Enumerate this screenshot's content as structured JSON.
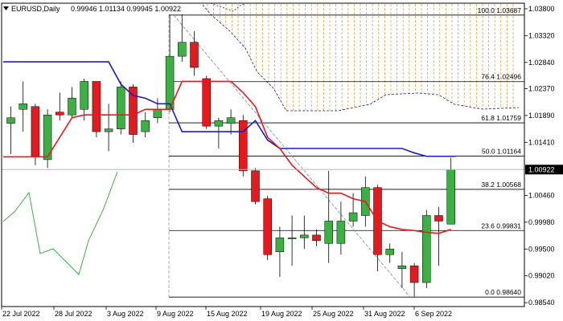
{
  "header": {
    "symbol": "EURUSD,Daily",
    "ohlc": "0.99946 1.01134 0.99945 1.00922"
  },
  "price_axis": {
    "labels": [
      "1.03800",
      "1.03320",
      "1.02840",
      "1.02370",
      "1.01890",
      "1.01410",
      "1.00922",
      "1.00460",
      "0.99980",
      "0.99500",
      "0.99020",
      "0.98540"
    ],
    "current_price": 1.00922,
    "current_label": "1.00922"
  },
  "time_axis": {
    "labels": [
      "22 Jul 2022",
      "28 Jul 2022",
      "3 Aug 2022",
      "9 Aug 2022",
      "15 Aug 2022",
      "19 Aug 2022",
      "25 Aug 2022",
      "31 Aug 2022",
      "6 Sep 2022"
    ]
  },
  "fibonacci": [
    {
      "label": "100.0 1.03687",
      "price": 1.03687
    },
    {
      "label": "76.4 1.02496",
      "price": 1.02496
    },
    {
      "label": "61.8 1.01759",
      "price": 1.01759
    },
    {
      "label": "50.0 1.01164",
      "price": 1.01164
    },
    {
      "label": "38.2 1.00568",
      "price": 1.00568
    },
    {
      "label": "23.6 0.99831",
      "price": 0.99831
    },
    {
      "label": "0.0 0.98640",
      "price": 0.9864
    }
  ],
  "colors": {
    "bull": "#3cb043",
    "bear": "#e8191c",
    "wick": "#000000",
    "blue_line": "#1a1acd",
    "red_line": "#e8191c",
    "green_line": "#3cb043",
    "cloud": "#e8a13c",
    "cloud_border": "#1a1a7a"
  },
  "chart_data": {
    "type": "candlestick",
    "symbol": "EURUSD",
    "timeframe": "Daily",
    "ylim": [
      0.9845,
      1.0392
    ],
    "candles": [
      {
        "o": 1.0175,
        "h": 1.0205,
        "l": 1.012,
        "c": 1.0185
      },
      {
        "o": 1.02,
        "h": 1.025,
        "l": 1.016,
        "c": 1.021
      },
      {
        "o": 1.0205,
        "h": 1.021,
        "l": 1.01,
        "c": 1.0115
      },
      {
        "o": 1.011,
        "h": 1.02,
        "l": 1.0095,
        "c": 1.019
      },
      {
        "o": 1.0195,
        "h": 1.023,
        "l": 1.018,
        "c": 1.019
      },
      {
        "o": 1.019,
        "h": 1.024,
        "l": 1.0185,
        "c": 1.022
      },
      {
        "o": 1.02,
        "h": 1.0255,
        "l": 1.018,
        "c": 1.025
      },
      {
        "o": 1.025,
        "h": 1.025,
        "l": 1.015,
        "c": 1.016
      },
      {
        "o": 1.016,
        "h": 1.021,
        "l": 1.0125,
        "c": 1.0165
      },
      {
        "o": 1.0165,
        "h": 1.025,
        "l": 1.0155,
        "c": 1.024
      },
      {
        "o": 1.024,
        "h": 1.0245,
        "l": 1.014,
        "c": 1.0155
      },
      {
        "o": 1.016,
        "h": 1.0195,
        "l": 1.015,
        "c": 1.018
      },
      {
        "o": 1.0185,
        "h": 1.022,
        "l": 1.0175,
        "c": 1.02
      },
      {
        "o": 1.02,
        "h": 1.037,
        "l": 1.0195,
        "c": 1.0295
      },
      {
        "o": 1.0295,
        "h": 1.037,
        "l": 1.0285,
        "c": 1.032
      },
      {
        "o": 1.032,
        "h": 1.034,
        "l": 1.026,
        "c": 1.0275
      },
      {
        "o": 1.0255,
        "h": 1.026,
        "l": 1.0165,
        "c": 1.017
      },
      {
        "o": 1.017,
        "h": 1.0185,
        "l": 1.013,
        "c": 1.018
      },
      {
        "o": 1.0175,
        "h": 1.02,
        "l": 1.0155,
        "c": 1.0185
      },
      {
        "o": 1.018,
        "h": 1.019,
        "l": 1.008,
        "c": 1.009
      },
      {
        "o": 1.009,
        "h": 1.0095,
        "l": 1.003,
        "c": 1.0035
      },
      {
        "o": 1.004,
        "h": 1.0045,
        "l": 0.993,
        "c": 0.994
      },
      {
        "o": 0.9945,
        "h": 0.999,
        "l": 0.99,
        "c": 0.997
      },
      {
        "o": 0.997,
        "h": 1.001,
        "l": 0.992,
        "c": 0.997
      },
      {
        "o": 0.997,
        "h": 1.001,
        "l": 0.995,
        "c": 0.9975
      },
      {
        "o": 0.9975,
        "h": 0.9985,
        "l": 0.9955,
        "c": 0.9965
      },
      {
        "o": 0.996,
        "h": 1.009,
        "l": 0.9925,
        "c": 1.0
      },
      {
        "o": 0.996,
        "h": 1.0035,
        "l": 0.994,
        "c": 1.0
      },
      {
        "o": 1.0,
        "h": 1.005,
        "l": 0.999,
        "c": 1.0015
      },
      {
        "o": 1.001,
        "h": 1.008,
        "l": 0.999,
        "c": 1.006
      },
      {
        "o": 1.006,
        "h": 1.0065,
        "l": 0.991,
        "c": 0.994
      },
      {
        "o": 0.994,
        "h": 0.996,
        "l": 0.9925,
        "c": 0.995
      },
      {
        "o": 0.9915,
        "h": 0.9945,
        "l": 0.988,
        "c": 0.992
      },
      {
        "o": 0.992,
        "h": 0.9925,
        "l": 0.9865,
        "c": 0.989
      },
      {
        "o": 0.989,
        "h": 1.002,
        "l": 0.988,
        "c": 1.001
      },
      {
        "o": 1.001,
        "h": 1.0025,
        "l": 0.992,
        "c": 1.0
      },
      {
        "o": 0.99946,
        "h": 1.01134,
        "l": 0.99945,
        "c": 1.00922
      }
    ],
    "blue_line": [
      1.0285,
      1.0285,
      1.0285,
      1.0285,
      1.0285,
      1.0285,
      1.0285,
      1.0285,
      1.0285,
      1.0245,
      1.0225,
      1.022,
      1.021,
      1.021,
      1.016,
      1.016,
      1.016,
      1.016,
      1.016,
      1.016,
      1.018,
      1.0145,
      1.013,
      1.013,
      1.013,
      1.013,
      1.013,
      1.013,
      1.013,
      1.013,
      1.013,
      1.013,
      1.013,
      1.0122,
      1.0116,
      1.0116,
      1.0116
    ],
    "red_line": [
      1.0115,
      1.0115,
      1.0115,
      1.0115,
      1.015,
      1.0185,
      1.019,
      1.019,
      1.019,
      1.019,
      1.019,
      1.02,
      1.02,
      1.02,
      1.025,
      1.025,
      1.025,
      1.025,
      1.025,
      1.023,
      1.0205,
      1.015,
      1.013,
      1.01,
      1.008,
      1.006,
      1.005,
      1.005,
      1.004,
      1.0035,
      1.0,
      0.999,
      0.9985,
      0.9983,
      0.998,
      0.9978,
      0.9985
    ]
  }
}
